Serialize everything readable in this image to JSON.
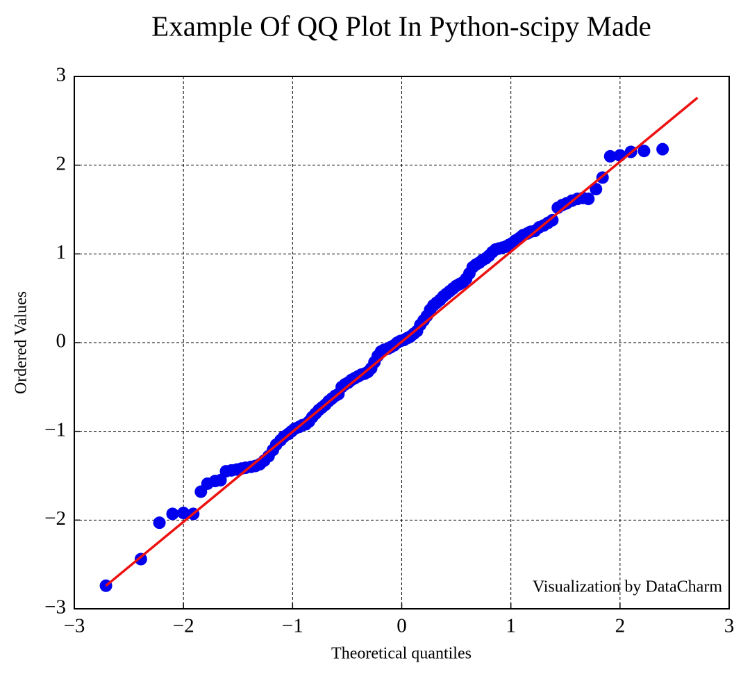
{
  "chart_data": {
    "type": "scatter",
    "title": "Example Of QQ Plot In Python-scipy Made",
    "xlabel": "Theoretical quantiles",
    "ylabel": "Ordered Values",
    "annotation": "Visualization by DataCharm",
    "xlim": [
      -3,
      3
    ],
    "ylim": [
      -3,
      3
    ],
    "xticks": [
      {
        "value": -3,
        "label": "−3"
      },
      {
        "value": -2,
        "label": "−2"
      },
      {
        "value": -1,
        "label": "−1"
      },
      0,
      1,
      2,
      3
    ],
    "yticks": [
      {
        "value": -3,
        "label": "−3"
      },
      {
        "value": -2,
        "label": "−2"
      },
      {
        "value": -1,
        "label": "−1"
      },
      0,
      1,
      2,
      3
    ],
    "grid": true,
    "series": [
      {
        "color": "#0000ee",
        "x": [
          -2.71,
          -2.39,
          -2.22,
          -2.1,
          -2.0,
          -1.91,
          -1.84,
          -1.78,
          -1.71,
          -1.66,
          -1.61,
          -1.56,
          -1.51,
          -1.47,
          -1.43,
          -1.38,
          -1.34,
          -1.3,
          -1.26,
          -1.22,
          -1.18,
          -1.15,
          -1.11,
          -1.08,
          -1.04,
          -1.01,
          -0.98,
          -0.94,
          -0.91,
          -0.88,
          -0.85,
          -0.82,
          -0.79,
          -0.76,
          -0.73,
          -0.7,
          -0.67,
          -0.64,
          -0.61,
          -0.58,
          -0.55,
          -0.52,
          -0.49,
          -0.46,
          -0.43,
          -0.4,
          -0.37,
          -0.34,
          -0.31,
          -0.28,
          -0.25,
          -0.22,
          -0.19,
          -0.16,
          -0.13,
          -0.1,
          -0.07,
          -0.04,
          -0.01,
          0.02,
          0.05,
          0.08,
          0.11,
          0.14,
          0.17,
          0.2,
          0.23,
          0.26,
          0.29,
          0.32,
          0.35,
          0.38,
          0.41,
          0.44,
          0.47,
          0.5,
          0.53,
          0.56,
          0.59,
          0.62,
          0.65,
          0.68,
          0.71,
          0.74,
          0.77,
          0.8,
          0.83,
          0.86,
          0.89,
          0.92,
          0.95,
          0.98,
          1.01,
          1.04,
          1.08,
          1.11,
          1.15,
          1.18,
          1.22,
          1.26,
          1.3,
          1.34,
          1.38,
          1.43,
          1.47,
          1.51,
          1.56,
          1.61,
          1.66,
          1.71,
          1.78,
          1.84,
          1.91,
          2.0,
          2.1,
          2.22,
          2.39
        ],
        "values": [
          -2.74,
          -2.44,
          -2.03,
          -1.93,
          -1.92,
          -1.93,
          -1.68,
          -1.59,
          -1.56,
          -1.55,
          -1.45,
          -1.44,
          -1.43,
          -1.42,
          -1.41,
          -1.4,
          -1.39,
          -1.37,
          -1.33,
          -1.28,
          -1.21,
          -1.15,
          -1.1,
          -1.06,
          -1.03,
          -1.0,
          -0.97,
          -0.95,
          -0.93,
          -0.92,
          -0.89,
          -0.84,
          -0.8,
          -0.76,
          -0.73,
          -0.7,
          -0.66,
          -0.63,
          -0.6,
          -0.58,
          -0.5,
          -0.47,
          -0.45,
          -0.42,
          -0.4,
          -0.38,
          -0.36,
          -0.35,
          -0.33,
          -0.29,
          -0.22,
          -0.15,
          -0.1,
          -0.08,
          -0.07,
          -0.05,
          -0.03,
          0.0,
          0.02,
          0.03,
          0.05,
          0.07,
          0.1,
          0.13,
          0.2,
          0.25,
          0.3,
          0.37,
          0.42,
          0.45,
          0.48,
          0.52,
          0.55,
          0.58,
          0.61,
          0.64,
          0.66,
          0.68,
          0.72,
          0.78,
          0.85,
          0.88,
          0.9,
          0.93,
          0.95,
          0.98,
          1.02,
          1.05,
          1.06,
          1.07,
          1.08,
          1.1,
          1.12,
          1.15,
          1.18,
          1.21,
          1.23,
          1.25,
          1.26,
          1.3,
          1.32,
          1.35,
          1.38,
          1.52,
          1.55,
          1.57,
          1.6,
          1.62,
          1.63,
          1.62,
          1.73,
          1.86,
          2.1,
          2.11,
          2.15,
          2.16,
          2.18
        ]
      }
    ],
    "fit_line": {
      "x": [
        -2.71,
        2.71
      ],
      "y": [
        -2.74,
        2.76
      ],
      "color": "#ee1111"
    }
  }
}
